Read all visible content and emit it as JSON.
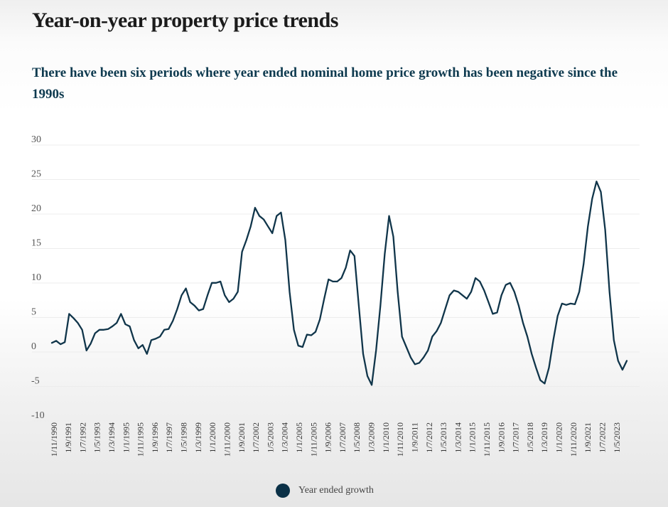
{
  "page": {
    "title": "Year-on-year property price trends",
    "subtitle": "There have been six periods where year ended nominal home price growth has been negative since the 1990s"
  },
  "colors": {
    "line": "#10354a",
    "legend_dot": "#0b3147",
    "subtitle": "#0e3a4f"
  },
  "chart_data": {
    "type": "line",
    "title": "Year-on-year property price trends",
    "subtitle": "There have been six periods where year ended nominal home price growth has been negative since the 1990s",
    "xlabel": "",
    "ylabel": "",
    "ylim": [
      -10,
      30
    ],
    "yticks": [
      30,
      25,
      20,
      15,
      10,
      5,
      0,
      -5,
      -10
    ],
    "grid": true,
    "legend_position": "bottom-center",
    "xtick_labels": [
      "1/11/1990",
      "1/9/1991",
      "1/7/1992",
      "1/5/1993",
      "1/3/1994",
      "1/1/1995",
      "1/11/1995",
      "1/9/1996",
      "1/7/1997",
      "1/5/1998",
      "1/3/1999",
      "1/1/2000",
      "1/11/2000",
      "1/9/2001",
      "1/7/2002",
      "1/5/2003",
      "1/3/2004",
      "1/1/2005",
      "1/11/2005",
      "1/9/2006",
      "1/7/2007",
      "1/5/2008",
      "1/3/2009",
      "1/1/2010",
      "1/11/2010",
      "1/9/2011",
      "1/7/2012",
      "1/5/2013",
      "1/3/2014",
      "1/1/2015",
      "1/11/2015",
      "1/9/2016",
      "1/7/2017",
      "1/5/2018",
      "1/3/2019",
      "1/1/2020",
      "1/11/2020",
      "1/9/2021",
      "1/7/2022",
      "1/5/2023"
    ],
    "series": [
      {
        "name": "Year ended growth",
        "x_start": "1990-11",
        "x_step_months": 3,
        "values": [
          0.6,
          0.9,
          0.4,
          0.7,
          4.8,
          4.2,
          3.5,
          2.5,
          -0.5,
          0.5,
          2.0,
          2.5,
          2.5,
          2.6,
          3.0,
          3.5,
          4.8,
          3.3,
          3.0,
          1.0,
          -0.2,
          0.3,
          -1.0,
          1.0,
          1.2,
          1.5,
          2.5,
          2.6,
          3.8,
          5.5,
          7.5,
          8.5,
          6.5,
          6.0,
          5.3,
          5.5,
          7.5,
          9.3,
          9.3,
          9.5,
          7.5,
          6.5,
          7.0,
          8.0,
          13.8,
          15.5,
          17.5,
          20.2,
          19.0,
          18.5,
          17.5,
          16.5,
          19.0,
          19.5,
          15.5,
          8.0,
          2.5,
          0.2,
          0.0,
          1.8,
          1.7,
          2.2,
          4.0,
          7.0,
          9.8,
          9.5,
          9.5,
          10.0,
          11.5,
          14.0,
          13.2,
          6.0,
          -1.0,
          -4.2,
          -5.5,
          -0.5,
          6.0,
          13.5,
          19.0,
          16.0,
          8.0,
          1.5,
          0.0,
          -1.5,
          -2.5,
          -2.3,
          -1.5,
          -0.5,
          1.5,
          2.3,
          3.5,
          5.5,
          7.5,
          8.2,
          8.0,
          7.5,
          7.0,
          8.0,
          10.0,
          9.5,
          8.2,
          6.5,
          4.8,
          5.0,
          7.5,
          9.0,
          9.3,
          8.0,
          6.0,
          3.5,
          1.5,
          -1.0,
          -3.0,
          -4.8,
          -5.3,
          -3.0,
          1.0,
          4.5,
          6.3,
          6.1,
          6.3,
          6.2,
          8.0,
          12.0,
          17.5,
          21.5,
          24.0,
          22.5,
          17.0,
          8.0,
          1.0,
          -2.0,
          -3.3,
          -2.0
        ]
      }
    ]
  },
  "legend": {
    "label": "Year ended growth"
  }
}
